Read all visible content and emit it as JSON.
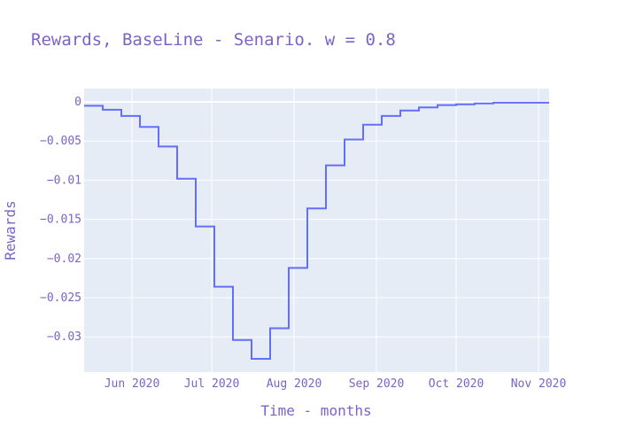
{
  "chart_data": {
    "type": "line",
    "line_shape": "step",
    "title": "Rewards, BaseLine - Senario. w = 0.8",
    "xlabel": "Time - months",
    "ylabel": "Rewards",
    "x_tick_labels": [
      "Jun 2020",
      "Jul 2020",
      "Aug 2020",
      "Sep 2020",
      "Oct 2020",
      "Nov 2020"
    ],
    "x_ticks": [
      "2020-06-01",
      "2020-07-01",
      "2020-08-01",
      "2020-09-01",
      "2020-10-01",
      "2020-11-01"
    ],
    "y_tick_labels": [
      "0",
      "−0.005",
      "−0.01",
      "−0.015",
      "−0.02",
      "−0.025",
      "−0.03"
    ],
    "y_ticks": [
      0,
      -0.005,
      -0.01,
      -0.015,
      -0.02,
      -0.025,
      -0.03
    ],
    "xlim": [
      "2020-05-14",
      "2020-11-05"
    ],
    "ylim": [
      -0.0345,
      0.0017
    ],
    "grid": true,
    "series": [
      {
        "x": [
          "2020-05-14",
          "2020-05-21",
          "2020-05-28",
          "2020-06-04",
          "2020-06-11",
          "2020-06-18",
          "2020-06-25",
          "2020-07-02",
          "2020-07-09",
          "2020-07-16",
          "2020-07-23",
          "2020-07-30",
          "2020-08-06",
          "2020-08-13",
          "2020-08-20",
          "2020-08-27",
          "2020-09-03",
          "2020-09-10",
          "2020-09-17",
          "2020-09-24",
          "2020-10-01",
          "2020-10-08",
          "2020-10-15",
          "2020-10-22",
          "2020-10-29",
          "2020-11-05"
        ],
        "y": [
          -0.0005,
          -0.001,
          -0.0018,
          -0.0032,
          -0.0057,
          -0.0098,
          -0.0159,
          -0.0236,
          -0.0304,
          -0.0328,
          -0.0289,
          -0.0212,
          -0.0136,
          -0.0081,
          -0.0048,
          -0.0029,
          -0.0018,
          -0.0011,
          -0.0007,
          -0.0004,
          -0.0003,
          -0.0002,
          -0.0001,
          -0.0001,
          -0.0001,
          -0.0001
        ]
      }
    ],
    "colors": {
      "line": "#636efa",
      "plot_bg": "#e5ecf6",
      "grid": "#ffffff",
      "text": "#7b64c4"
    }
  }
}
